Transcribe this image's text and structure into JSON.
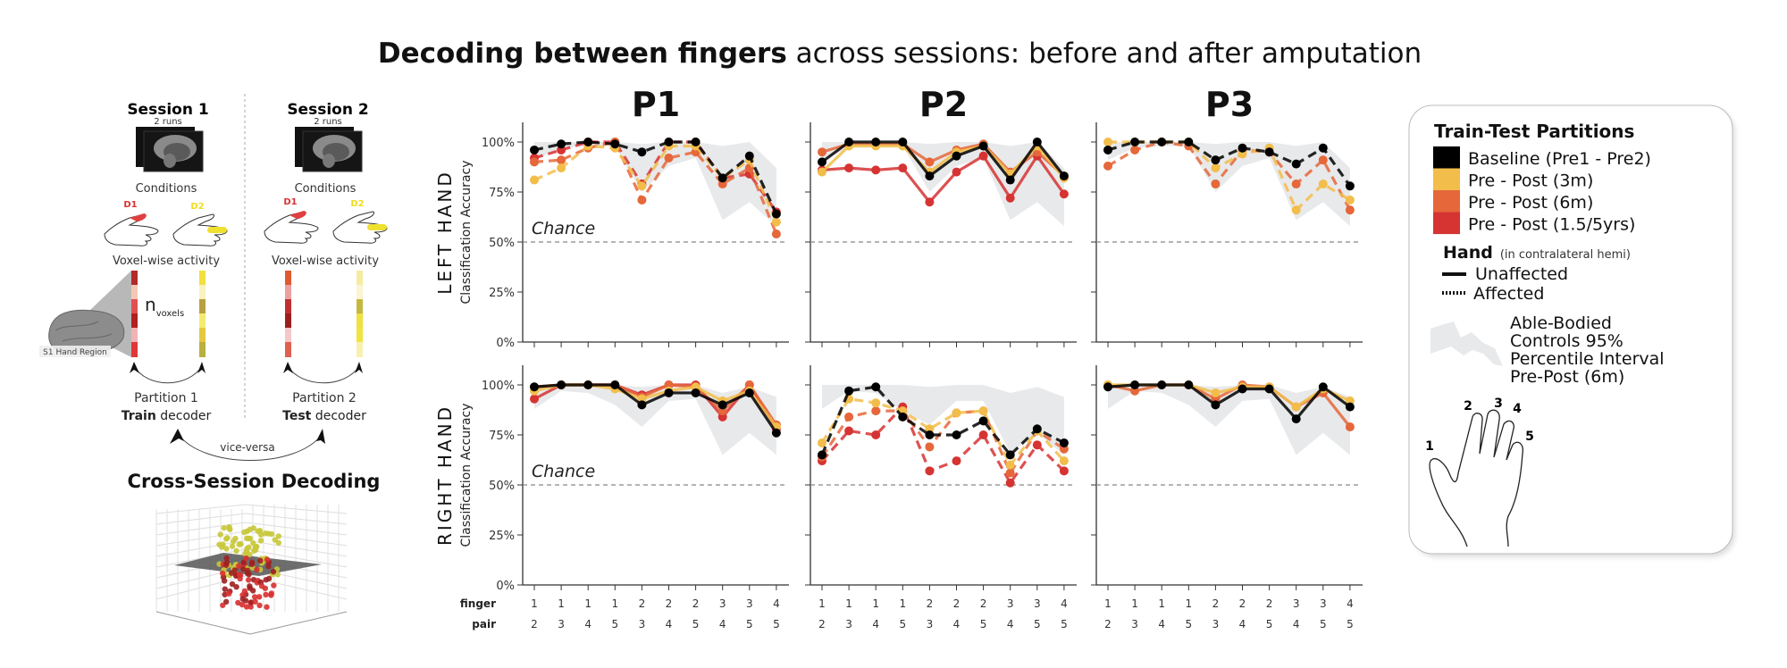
{
  "title": {
    "bold": "Decoding between fingers",
    "rest": " across sessions: before and after amputation"
  },
  "schematic": {
    "session1": {
      "title": "Session 1",
      "runs": "2 runs"
    },
    "session2": {
      "title": "Session 2",
      "runs": "2 runs"
    },
    "conditions": "Conditions",
    "d1": "D1",
    "d2": "D2",
    "voxel_activity": "Voxel-wise activity",
    "n": "n",
    "n_sub": "voxels",
    "region": "S1 Hand Region",
    "partition1": {
      "label": "Partition 1",
      "bold": "Train",
      "rest": " decoder"
    },
    "partition2": {
      "label": "Partition 2",
      "bold": "Test",
      "rest": " decoder"
    },
    "vice_versa": "vice-versa",
    "cross_session": "Cross-Session Decoding"
  },
  "legend": {
    "title": "Train-Test Partitions",
    "partitions": [
      {
        "label": "Baseline (Pre1 - Pre2)",
        "color": "#000000"
      },
      {
        "label": "Pre - Post (3m)",
        "color": "#f2bd4a"
      },
      {
        "label": "Pre - Post (6m)",
        "color": "#e5673a"
      },
      {
        "label": "Pre - Post (1.5/5yrs)",
        "color": "#d63333"
      }
    ],
    "hand_title": "Hand",
    "hand_sub": "(in contralateral hemi)",
    "unaffected": "Unaffected",
    "affected": "Affected",
    "band_lines": [
      "Able-Bodied",
      "Controls 95%",
      "Percentile Interval",
      "Pre-Post (6m)"
    ],
    "band_color": "#e8e9eb",
    "finger_numbers": [
      "1",
      "2",
      "3",
      "4",
      "5"
    ]
  },
  "axis_common": {
    "ylabel": "Classification Accuracy",
    "yticks": [
      "0%",
      "25%",
      "50%",
      "75%",
      "100%"
    ],
    "ytick_values": [
      0,
      25,
      50,
      75,
      100
    ],
    "ylim": [
      0,
      110
    ],
    "chance_label": "Chance",
    "chance_value": 50,
    "row_label_finger": "finger",
    "row_label_pair": "pair",
    "finger": [
      "1",
      "1",
      "1",
      "1",
      "2",
      "2",
      "2",
      "3",
      "3",
      "4"
    ],
    "pair": [
      "2",
      "3",
      "4",
      "5",
      "3",
      "4",
      "5",
      "4",
      "5",
      "5"
    ]
  },
  "chart_data": [
    {
      "type": "line",
      "title": "P1",
      "hand": "LEFT HAND",
      "line_style": "dashed",
      "band": {
        "lower": [
          91,
          97,
          98,
          98,
          75,
          88,
          92,
          61,
          70,
          58
        ],
        "upper": [
          100,
          100,
          100,
          100,
          99,
          100,
          100,
          98,
          100,
          87
        ]
      },
      "series": [
        {
          "name": "Baseline (Pre1 - Pre2)",
          "values": [
            96,
            99,
            100,
            99,
            95,
            100,
            100,
            82,
            93,
            64
          ]
        },
        {
          "name": "Pre - Post (3m)",
          "values": [
            81,
            87,
            98,
            97,
            78,
            98,
            98,
            82,
            91,
            60
          ]
        },
        {
          "name": "Pre - Post (6m)",
          "values": [
            90,
            91,
            97,
            100,
            71,
            92,
            95,
            79,
            87,
            54
          ]
        },
        {
          "name": "Pre - Post (1.5/5yrs)",
          "values": [
            92,
            96,
            100,
            100,
            79,
            100,
            100,
            82,
            84,
            65
          ]
        }
      ]
    },
    {
      "type": "line",
      "title": "P2",
      "hand": "LEFT HAND",
      "line_style": "solid",
      "band": {
        "lower": [
          91,
          97,
          98,
          98,
          75,
          88,
          92,
          61,
          70,
          58
        ],
        "upper": [
          100,
          100,
          100,
          100,
          99,
          100,
          100,
          98,
          100,
          87
        ]
      },
      "series": [
        {
          "name": "Baseline (Pre1 - Pre2)",
          "values": [
            90,
            100,
            100,
            100,
            83,
            93,
            98,
            81,
            100,
            83
          ]
        },
        {
          "name": "Pre - Post (3m)",
          "values": [
            85,
            98,
            98,
            98,
            85,
            95,
            98,
            84,
            98,
            82
          ]
        },
        {
          "name": "Pre - Post (6m)",
          "values": [
            95,
            99,
            99,
            99,
            90,
            96,
            99,
            85,
            95,
            83
          ]
        },
        {
          "name": "Pre - Post (1.5/5yrs)",
          "values": [
            86,
            87,
            86,
            87,
            70,
            85,
            93,
            72,
            93,
            74
          ]
        }
      ]
    },
    {
      "type": "line",
      "title": "P3",
      "hand": "LEFT HAND",
      "line_style": "dashed",
      "band": {
        "lower": [
          91,
          97,
          98,
          98,
          75,
          88,
          92,
          61,
          70,
          58
        ],
        "upper": [
          100,
          100,
          100,
          100,
          99,
          100,
          100,
          98,
          100,
          87
        ]
      },
      "series": [
        {
          "name": "Baseline (Pre1 - Pre2)",
          "values": [
            96,
            100,
            100,
            100,
            91,
            97,
            95,
            89,
            97,
            78
          ]
        },
        {
          "name": "Pre - Post (3m)",
          "values": [
            100,
            100,
            100,
            100,
            87,
            94,
            97,
            66,
            79,
            71
          ]
        },
        {
          "name": "Pre - Post (6m)",
          "values": [
            88,
            96,
            100,
            98,
            79,
            96,
            95,
            79,
            91,
            66
          ]
        }
      ]
    },
    {
      "type": "line",
      "title": "P1",
      "hand": "RIGHT HAND",
      "line_style": "solid",
      "band": {
        "lower": [
          88,
          97,
          96,
          90,
          79,
          92,
          93,
          65,
          76,
          65
        ],
        "upper": [
          100,
          100,
          100,
          100,
          99,
          100,
          100,
          96,
          99,
          94
        ]
      },
      "series": [
        {
          "name": "Baseline (Pre1 - Pre2)",
          "values": [
            99,
            100,
            100,
            100,
            90,
            96,
            96,
            90,
            96,
            76
          ]
        },
        {
          "name": "Pre - Post (3m)",
          "values": [
            97,
            100,
            100,
            98,
            93,
            97,
            99,
            92,
            97,
            79
          ]
        },
        {
          "name": "Pre - Post (6m)",
          "values": [
            99,
            100,
            100,
            100,
            94,
            100,
            99,
            87,
            100,
            80
          ]
        },
        {
          "name": "Pre - Post (1.5/5yrs)",
          "values": [
            93,
            100,
            100,
            100,
            95,
            100,
            100,
            84,
            100,
            78
          ]
        }
      ]
    },
    {
      "type": "line",
      "title": "P2",
      "hand": "RIGHT HAND",
      "line_style": "dashed",
      "band": {
        "lower": [
          88,
          97,
          96,
          87,
          80,
          92,
          92,
          66,
          76,
          65
        ],
        "upper": [
          100,
          100,
          100,
          100,
          99,
          100,
          100,
          96,
          99,
          94
        ]
      },
      "series": [
        {
          "name": "Baseline (Pre1 - Pre2)",
          "values": [
            65,
            97,
            99,
            84,
            75,
            75,
            82,
            65,
            78,
            71
          ]
        },
        {
          "name": "Pre - Post (3m)",
          "values": [
            71,
            93,
            91,
            87,
            78,
            86,
            87,
            60,
            77,
            62
          ]
        },
        {
          "name": "Pre - Post (6m)",
          "values": [
            64,
            84,
            87,
            87,
            69,
            86,
            87,
            56,
            77,
            68
          ]
        },
        {
          "name": "Pre - Post (1.5/5yrs)",
          "values": [
            62,
            77,
            75,
            89,
            57,
            62,
            75,
            51,
            70,
            57
          ]
        }
      ]
    },
    {
      "type": "line",
      "title": "P3",
      "hand": "RIGHT HAND",
      "line_style": "solid",
      "band": {
        "lower": [
          88,
          97,
          96,
          90,
          79,
          92,
          93,
          65,
          76,
          65
        ],
        "upper": [
          100,
          100,
          100,
          100,
          99,
          100,
          100,
          96,
          99,
          94
        ]
      },
      "series": [
        {
          "name": "Baseline (Pre1 - Pre2)",
          "values": [
            99,
            100,
            100,
            100,
            90,
            98,
            98,
            83,
            99,
            89
          ]
        },
        {
          "name": "Pre - Post (3m)",
          "values": [
            100,
            100,
            100,
            100,
            96,
            99,
            99,
            89,
            98,
            92
          ]
        },
        {
          "name": "Pre - Post (6m)",
          "values": [
            100,
            97,
            100,
            100,
            93,
            100,
            99,
            89,
            96,
            79
          ]
        }
      ]
    }
  ]
}
